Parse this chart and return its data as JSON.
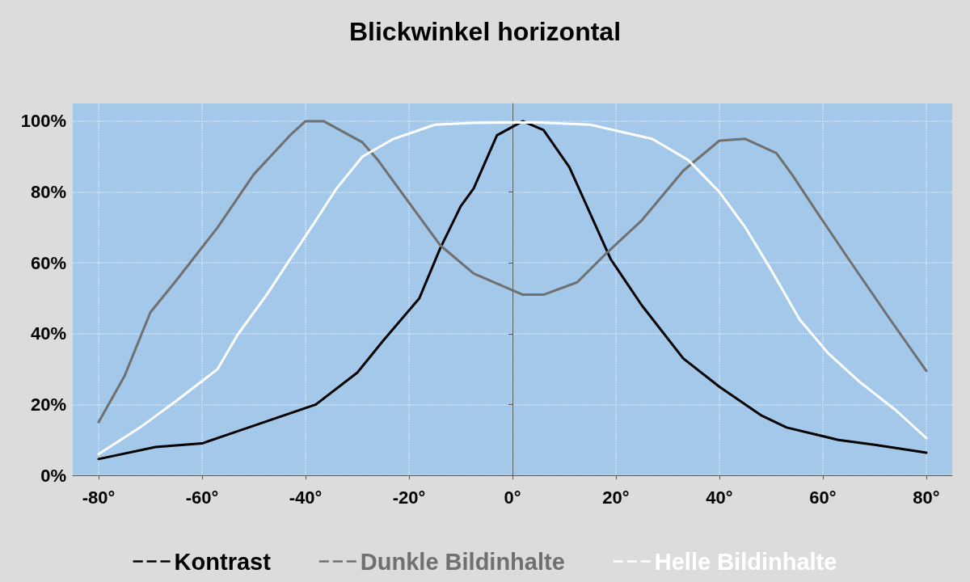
{
  "chart_data": {
    "type": "line",
    "title": "Blickwinkel horizontal",
    "xlim": [
      -85,
      85
    ],
    "xticks": [
      {
        "value": -80,
        "label": "-80°"
      },
      {
        "value": -60,
        "label": "-60°"
      },
      {
        "value": -40,
        "label": "-40°"
      },
      {
        "value": -20,
        "label": "-20°"
      },
      {
        "value": 0,
        "label": "0°"
      },
      {
        "value": 20,
        "label": "20°"
      },
      {
        "value": 40,
        "label": "40°"
      },
      {
        "value": 60,
        "label": "60°"
      },
      {
        "value": 80,
        "label": "80°"
      }
    ],
    "ylim": [
      0,
      105
    ],
    "yticks": [
      {
        "value": 0,
        "label": "0%"
      },
      {
        "value": 20,
        "label": "20%"
      },
      {
        "value": 40,
        "label": "40%"
      },
      {
        "value": 60,
        "label": "60%"
      },
      {
        "value": 80,
        "label": "80%"
      },
      {
        "value": 100,
        "label": "100%"
      }
    ],
    "grid": true,
    "legend": "bottom",
    "marker": "none",
    "line_style": "solid",
    "series": [
      {
        "name": "Kontrast",
        "color": "#000000",
        "x": [
          -80,
          -69,
          -60,
          -54,
          -46,
          -38,
          -30,
          -25,
          -18,
          -14,
          -10,
          -7.5,
          -3,
          2,
          6,
          11,
          15,
          19,
          25,
          33,
          40,
          48,
          53,
          63,
          70,
          80
        ],
        "values": [
          4.6,
          8,
          9,
          12,
          16,
          20,
          29,
          38,
          50,
          64,
          76,
          81,
          96,
          100,
          97.5,
          87,
          74,
          61,
          48,
          33,
          25,
          17,
          13.5,
          10,
          8.6,
          6.4
        ]
      },
      {
        "name": "Dunkle Bildinhalte",
        "color": "#707070",
        "x": [
          -80,
          -75,
          -70,
          -65,
          -57,
          -50,
          -43,
          -40,
          -36.5,
          -29,
          -26,
          -20.5,
          -14,
          -7.5,
          2,
          6,
          12.5,
          18,
          25,
          33,
          40,
          45,
          51,
          54,
          59,
          65,
          73,
          80
        ],
        "values": [
          15,
          28,
          46,
          55,
          70,
          85,
          96,
          100,
          100,
          94,
          89,
          78,
          65,
          57,
          51,
          51,
          54.5,
          62.5,
          72,
          86,
          94.5,
          95,
          91,
          85,
          74,
          61,
          44,
          29.5
        ]
      },
      {
        "name": "Helle Bildinhalte",
        "color": "#ffffff",
        "x": [
          -80,
          -72,
          -65,
          -57,
          -53,
          -47.5,
          -43,
          -38,
          -34,
          -29,
          -23,
          -15,
          -7.5,
          4,
          15,
          27,
          34,
          40,
          45,
          50,
          55.5,
          61,
          67,
          74,
          80
        ],
        "values": [
          6,
          13.5,
          21,
          30,
          40,
          51,
          61,
          72,
          81,
          90,
          95,
          99,
          99.5,
          99.7,
          99,
          95,
          89,
          80,
          70,
          58,
          44,
          34.5,
          26.5,
          18.5,
          10.5
        ]
      }
    ]
  }
}
